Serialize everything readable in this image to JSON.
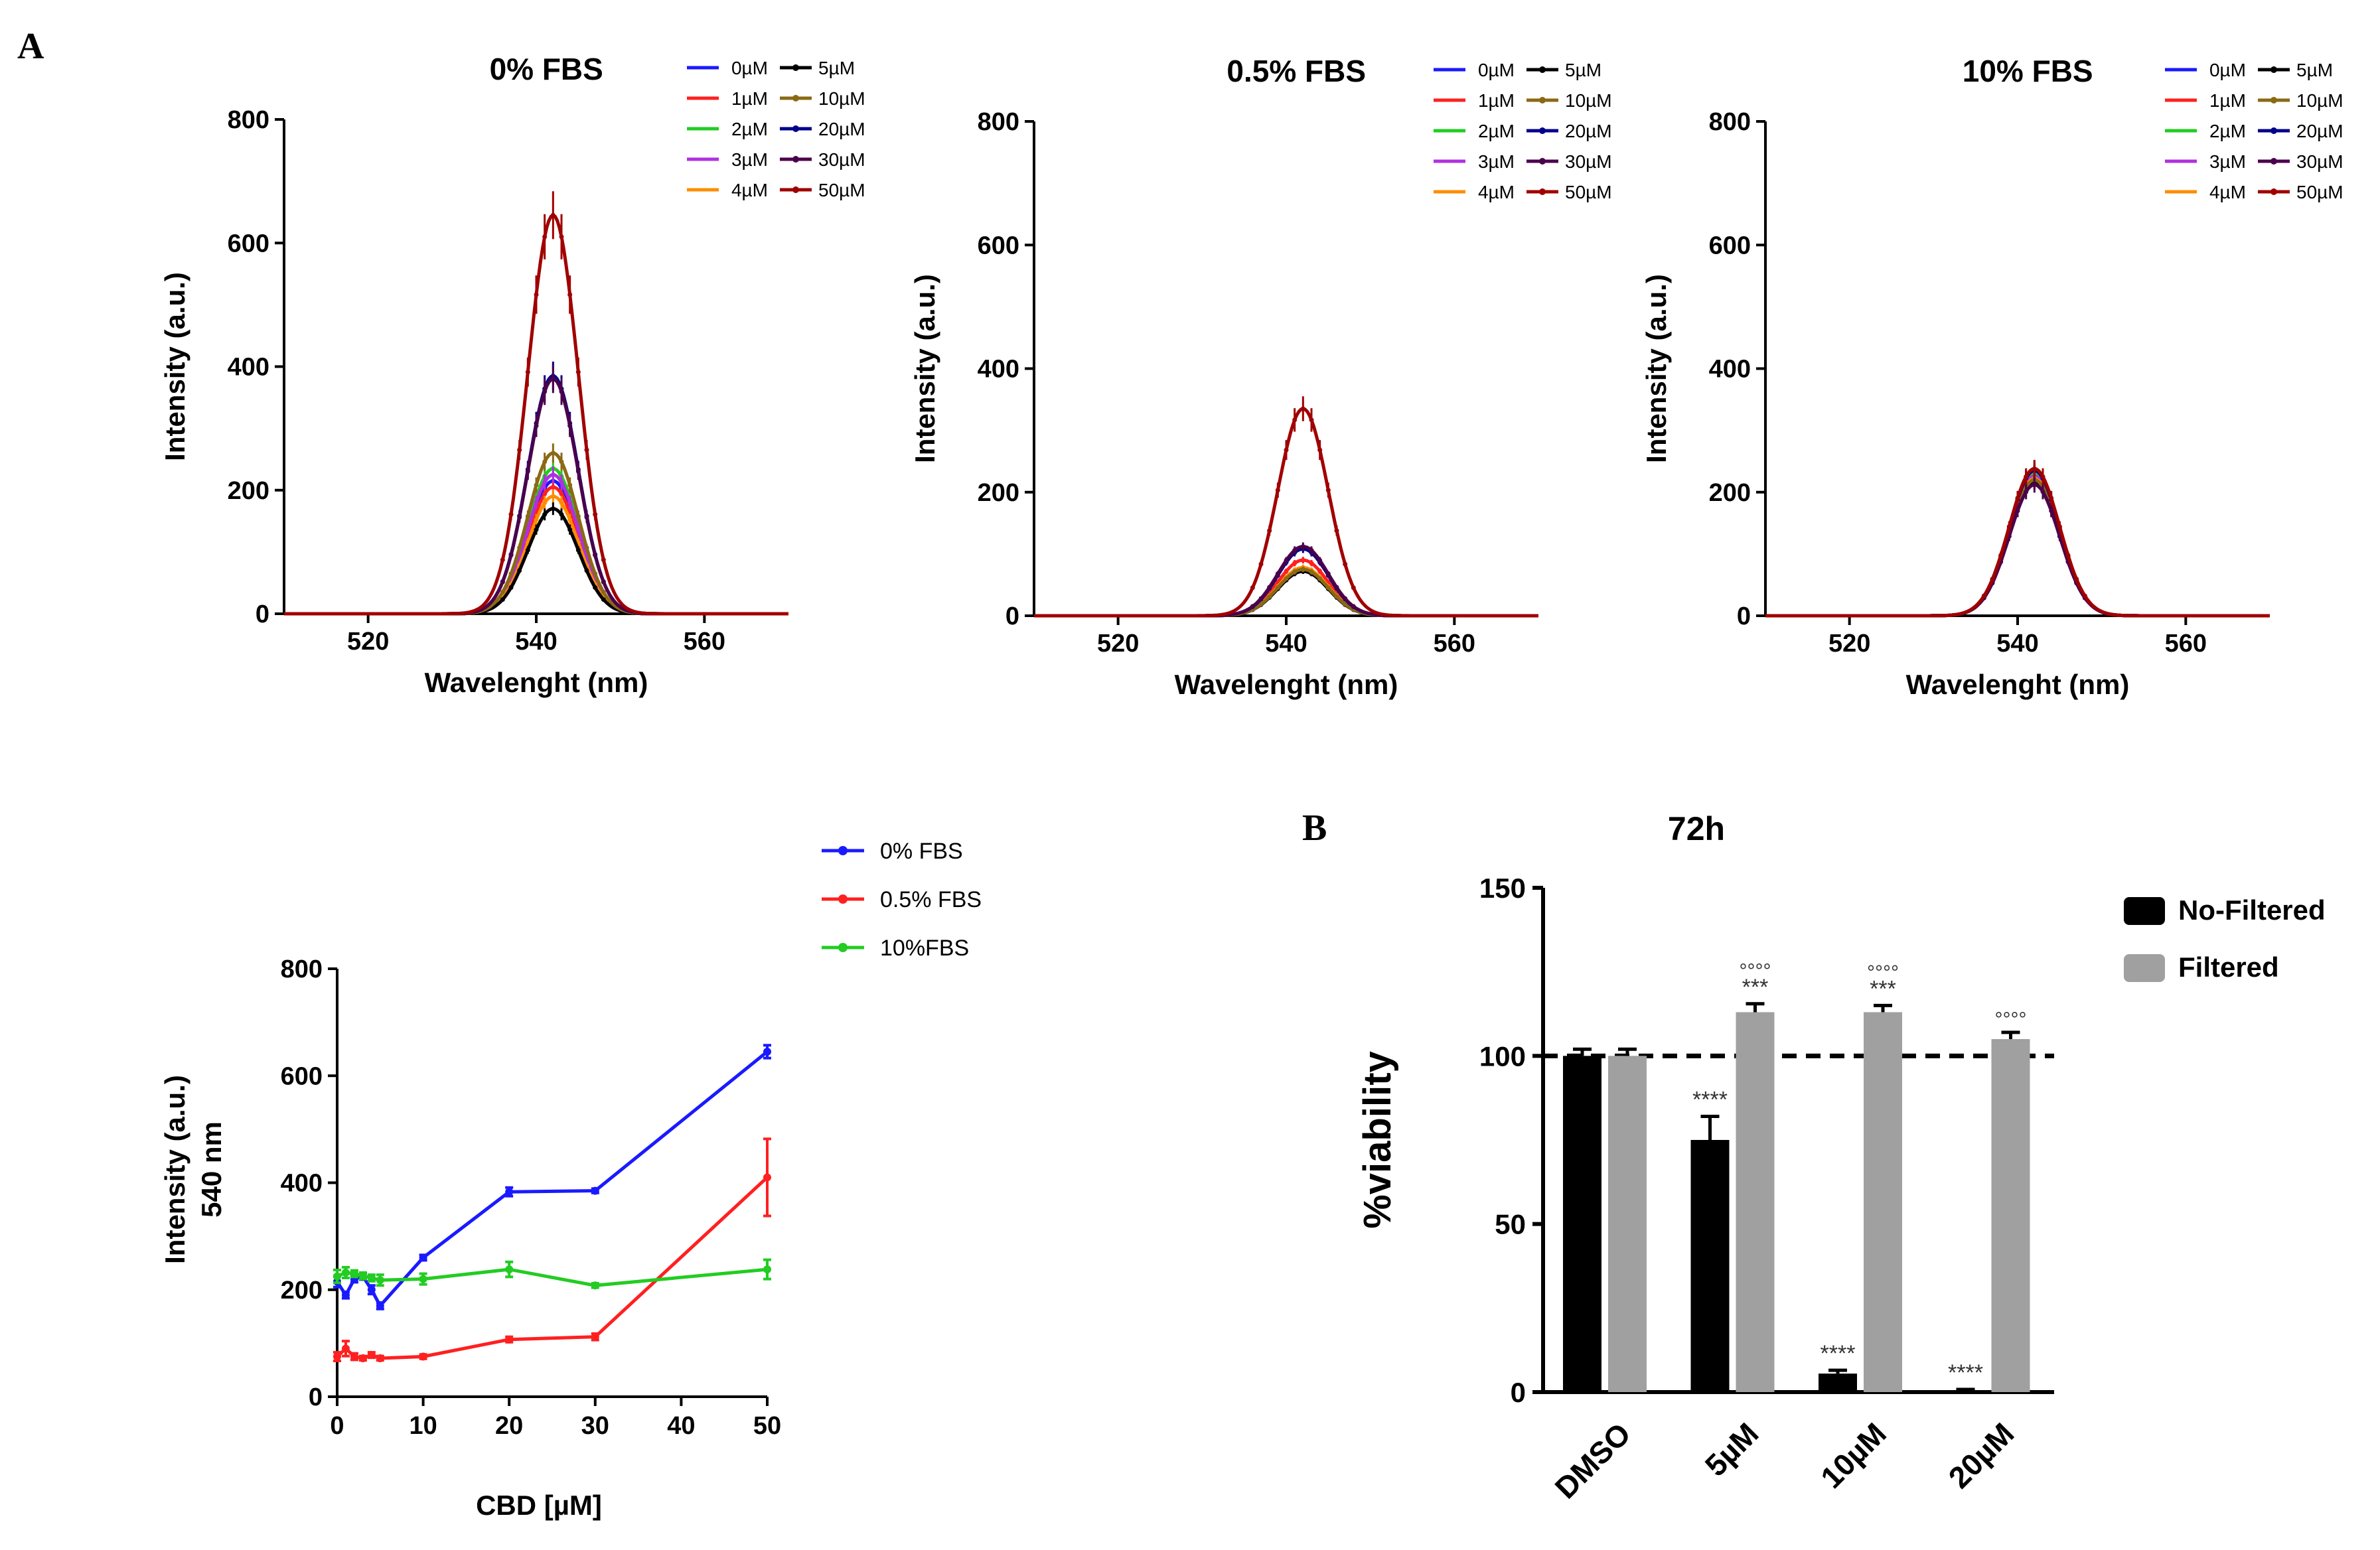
{
  "panel_labels": {
    "a": "A",
    "b": "B"
  },
  "colors": {
    "c0": "#1a1aff",
    "c1": "#ff2020",
    "c2": "#22cc22",
    "c3": "#b030e0",
    "c4": "#ff8c00",
    "c5": "#000000",
    "c10": "#8b6914",
    "c20": "#00008b",
    "c30": "#4b004b",
    "c50": "#a00000",
    "noFiltered": "#000000",
    "filtered": "#a0a0a0"
  },
  "chart_data": [
    {
      "id": "spec0",
      "type": "line",
      "title": "0% FBS",
      "xlabel": "Wavelenght (nm)",
      "ylabel": "Intensity (a.u.)",
      "xlim": [
        510,
        570
      ],
      "ylim": [
        0,
        800
      ],
      "xticks": [
        520,
        540,
        560
      ],
      "yticks": [
        0,
        200,
        400,
        600,
        800
      ],
      "peak_center": 542,
      "peak_sigma": 3,
      "series": [
        {
          "name": "0µM",
          "peak": 215,
          "color": "#1a1aff"
        },
        {
          "name": "1µM",
          "peak": 205,
          "color": "#ff2020"
        },
        {
          "name": "2µM",
          "peak": 235,
          "color": "#22cc22"
        },
        {
          "name": "3µM",
          "peak": 225,
          "color": "#b030e0"
        },
        {
          "name": "4µM",
          "peak": 190,
          "color": "#ff8c00"
        },
        {
          "name": "5µM",
          "peak": 170,
          "color": "#000000"
        },
        {
          "name": "10µM",
          "peak": 260,
          "color": "#8b6914"
        },
        {
          "name": "20µM",
          "peak": 385,
          "color": "#00008b"
        },
        {
          "name": "30µM",
          "peak": 380,
          "color": "#4b004b"
        },
        {
          "name": "50µM",
          "peak": 645,
          "color": "#a00000"
        }
      ]
    },
    {
      "id": "spec05",
      "type": "line",
      "title": "0.5% FBS",
      "xlabel": "Wavelenght (nm)",
      "ylabel": "Intensity (a.u.)",
      "xlim": [
        510,
        570
      ],
      "ylim": [
        0,
        800
      ],
      "xticks": [
        520,
        540,
        560
      ],
      "yticks": [
        0,
        200,
        400,
        600,
        800
      ],
      "peak_center": 542,
      "peak_sigma": 3,
      "series": [
        {
          "name": "0µM",
          "peak": 75,
          "color": "#1a1aff"
        },
        {
          "name": "1µM",
          "peak": 90,
          "color": "#ff2020"
        },
        {
          "name": "2µM",
          "peak": 75,
          "color": "#22cc22"
        },
        {
          "name": "3µM",
          "peak": 72,
          "color": "#b030e0"
        },
        {
          "name": "4µM",
          "peak": 78,
          "color": "#ff8c00"
        },
        {
          "name": "5µM",
          "peak": 72,
          "color": "#000000"
        },
        {
          "name": "10µM",
          "peak": 75,
          "color": "#8b6914"
        },
        {
          "name": "20µM",
          "peak": 108,
          "color": "#00008b"
        },
        {
          "name": "30µM",
          "peak": 112,
          "color": "#4b004b"
        },
        {
          "name": "50µM",
          "peak": 335,
          "color": "#a00000"
        }
      ]
    },
    {
      "id": "spec10",
      "type": "line",
      "title": "10% FBS",
      "xlabel": "Wavelenght (nm)",
      "ylabel": "Intensity (a.u.)",
      "xlim": [
        510,
        570
      ],
      "ylim": [
        0,
        800
      ],
      "xticks": [
        520,
        540,
        560
      ],
      "yticks": [
        0,
        200,
        400,
        600,
        800
      ],
      "peak_center": 542,
      "peak_sigma": 3,
      "series": [
        {
          "name": "0µM",
          "peak": 225,
          "color": "#1a1aff"
        },
        {
          "name": "1µM",
          "peak": 230,
          "color": "#ff2020"
        },
        {
          "name": "2µM",
          "peak": 232,
          "color": "#22cc22"
        },
        {
          "name": "3µM",
          "peak": 226,
          "color": "#b030e0"
        },
        {
          "name": "4µM",
          "peak": 222,
          "color": "#ff8c00"
        },
        {
          "name": "5µM",
          "peak": 218,
          "color": "#000000"
        },
        {
          "name": "10µM",
          "peak": 220,
          "color": "#8b6914"
        },
        {
          "name": "20µM",
          "peak": 235,
          "color": "#00008b"
        },
        {
          "name": "30µM",
          "peak": 212,
          "color": "#4b004b"
        },
        {
          "name": "50µM",
          "peak": 238,
          "color": "#a00000"
        }
      ]
    },
    {
      "id": "cbd",
      "type": "line",
      "title": "",
      "xlabel": "CBD [µM]",
      "ylabel": "Intensity (a.u.)",
      "ylabel2": "540 nm",
      "xlim": [
        0,
        50
      ],
      "ylim": [
        0,
        800
      ],
      "xticks": [
        0,
        10,
        20,
        30,
        40,
        50
      ],
      "yticks": [
        0,
        200,
        400,
        600,
        800
      ],
      "x": [
        0,
        1,
        2,
        3,
        4,
        5,
        10,
        20,
        30,
        50
      ],
      "series": [
        {
          "name": "0% FBS",
          "color": "#1a1aff",
          "values": [
            215,
            190,
            220,
            225,
            200,
            170,
            260,
            383,
            385,
            645
          ],
          "err": [
            10,
            6,
            6,
            6,
            8,
            6,
            5,
            8,
            4,
            12
          ]
        },
        {
          "name": "0.5% FBS",
          "color": "#ff2020",
          "values": [
            75,
            90,
            75,
            72,
            78,
            72,
            75,
            107,
            112,
            410
          ],
          "err": [
            8,
            14,
            6,
            4,
            5,
            4,
            4,
            5,
            6,
            72
          ]
        },
        {
          "name": "10%FBS",
          "color": "#22cc22",
          "values": [
            225,
            232,
            230,
            226,
            222,
            218,
            220,
            238,
            208,
            238
          ],
          "err": [
            12,
            10,
            6,
            6,
            6,
            10,
            10,
            14,
            4,
            18
          ]
        }
      ]
    },
    {
      "id": "viability",
      "type": "bar",
      "title": "72h",
      "xlabel": "",
      "ylabel": "%viability",
      "ylim": [
        0,
        150
      ],
      "yticks": [
        0,
        50,
        100,
        150
      ],
      "reference_line": 100,
      "categories": [
        "DMSO",
        "5µM",
        "10µM",
        "20µM"
      ],
      "series": [
        {
          "name": "No-Filtered",
          "color": "#000000",
          "values": [
            100,
            75,
            5.5,
            0.5
          ],
          "err": [
            2,
            7,
            1,
            0.3
          ],
          "annotations": [
            "",
            "****",
            "****",
            "****"
          ]
        },
        {
          "name": "Filtered",
          "color": "#a0a0a0",
          "values": [
            100,
            113,
            113,
            105
          ],
          "err": [
            2,
            2.5,
            2,
            2
          ],
          "annotations": [
            "",
            "***",
            "***",
            ""
          ],
          "annotations2": [
            "",
            "°°°°",
            "°°°°",
            "°°°°"
          ]
        }
      ]
    }
  ]
}
